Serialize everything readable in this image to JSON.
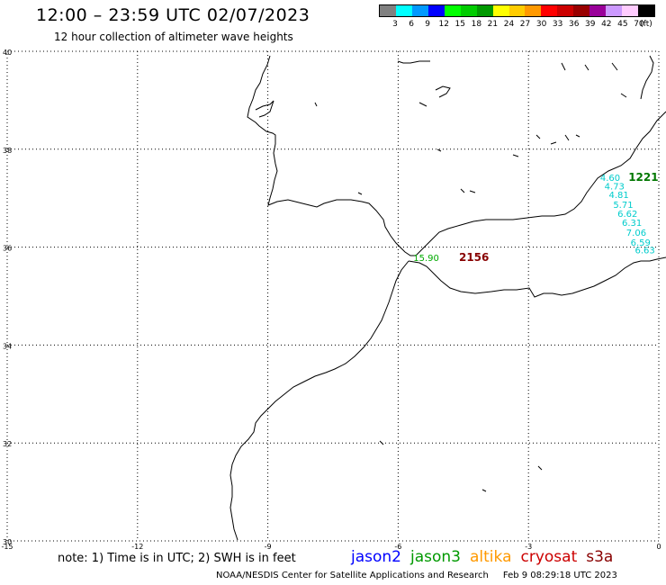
{
  "header": {
    "title": "12:00 – 23:59 UTC 02/07/2023",
    "subtitle": "12 hour collection of altimeter wave heights"
  },
  "legend": {
    "ticks": [
      "3",
      "6",
      "9",
      "12",
      "15",
      "18",
      "21",
      "24",
      "27",
      "30",
      "33",
      "36",
      "39",
      "42",
      "45",
      "70"
    ],
    "unit": "(ft)",
    "colors": [
      "#808080",
      "#00ffff",
      "#0099ff",
      "#0000ff",
      "#00ff00",
      "#00cc00",
      "#009900",
      "#ffff00",
      "#ffcc00",
      "#ff9900",
      "#ff0000",
      "#cc0000",
      "#990000",
      "#990099",
      "#cc99ff",
      "#ffccff",
      "#000000"
    ]
  },
  "map": {
    "lat_labels": [
      "40",
      "38",
      "36",
      "34",
      "32",
      "30"
    ],
    "lon_labels": [
      "-15",
      "-12",
      "-9",
      "-6",
      "-3",
      "0"
    ],
    "labels": [
      {
        "text": "4.60",
        "lon": -1.35,
        "lat": 37.35,
        "color": "#00cccc"
      },
      {
        "text": "4.73",
        "lon": -1.25,
        "lat": 37.18,
        "color": "#00cccc"
      },
      {
        "text": "4.81",
        "lon": -1.15,
        "lat": 37.0,
        "color": "#00cccc"
      },
      {
        "text": "5.71",
        "lon": -1.05,
        "lat": 36.8,
        "color": "#00cccc"
      },
      {
        "text": "6.62",
        "lon": -0.95,
        "lat": 36.62,
        "color": "#00cccc"
      },
      {
        "text": "6.31",
        "lon": -0.85,
        "lat": 36.43,
        "color": "#00cccc"
      },
      {
        "text": "7.06",
        "lon": -0.75,
        "lat": 36.23,
        "color": "#00cccc"
      },
      {
        "text": "6.59",
        "lon": -0.65,
        "lat": 36.03,
        "color": "#00cccc"
      },
      {
        "text": "6.63",
        "lon": -0.55,
        "lat": 35.87,
        "color": "#00cccc"
      },
      {
        "text": "15.90",
        "lon": -5.65,
        "lat": 35.72,
        "color": "#00aa00"
      },
      {
        "text": "1221",
        "lon": -0.7,
        "lat": 37.35,
        "color": "#007700"
      },
      {
        "text": "2156",
        "lon": -4.6,
        "lat": 35.72,
        "color": "#880000"
      }
    ]
  },
  "footer": {
    "note": "note:  1) Time is in UTC;  2) SWH is in feet",
    "satellites": [
      {
        "name": "jason2",
        "color": "#0000ff"
      },
      {
        "name": "jason3",
        "color": "#009900"
      },
      {
        "name": "altika",
        "color": "#ff9900"
      },
      {
        "name": "cryosat",
        "color": "#cc0000"
      },
      {
        "name": "s3a",
        "color": "#880000"
      }
    ],
    "credit": "NOAA/NESDIS Center for Satellite Applications and Research",
    "timestamp": "Feb  9 08:29:18 UTC 2023"
  }
}
